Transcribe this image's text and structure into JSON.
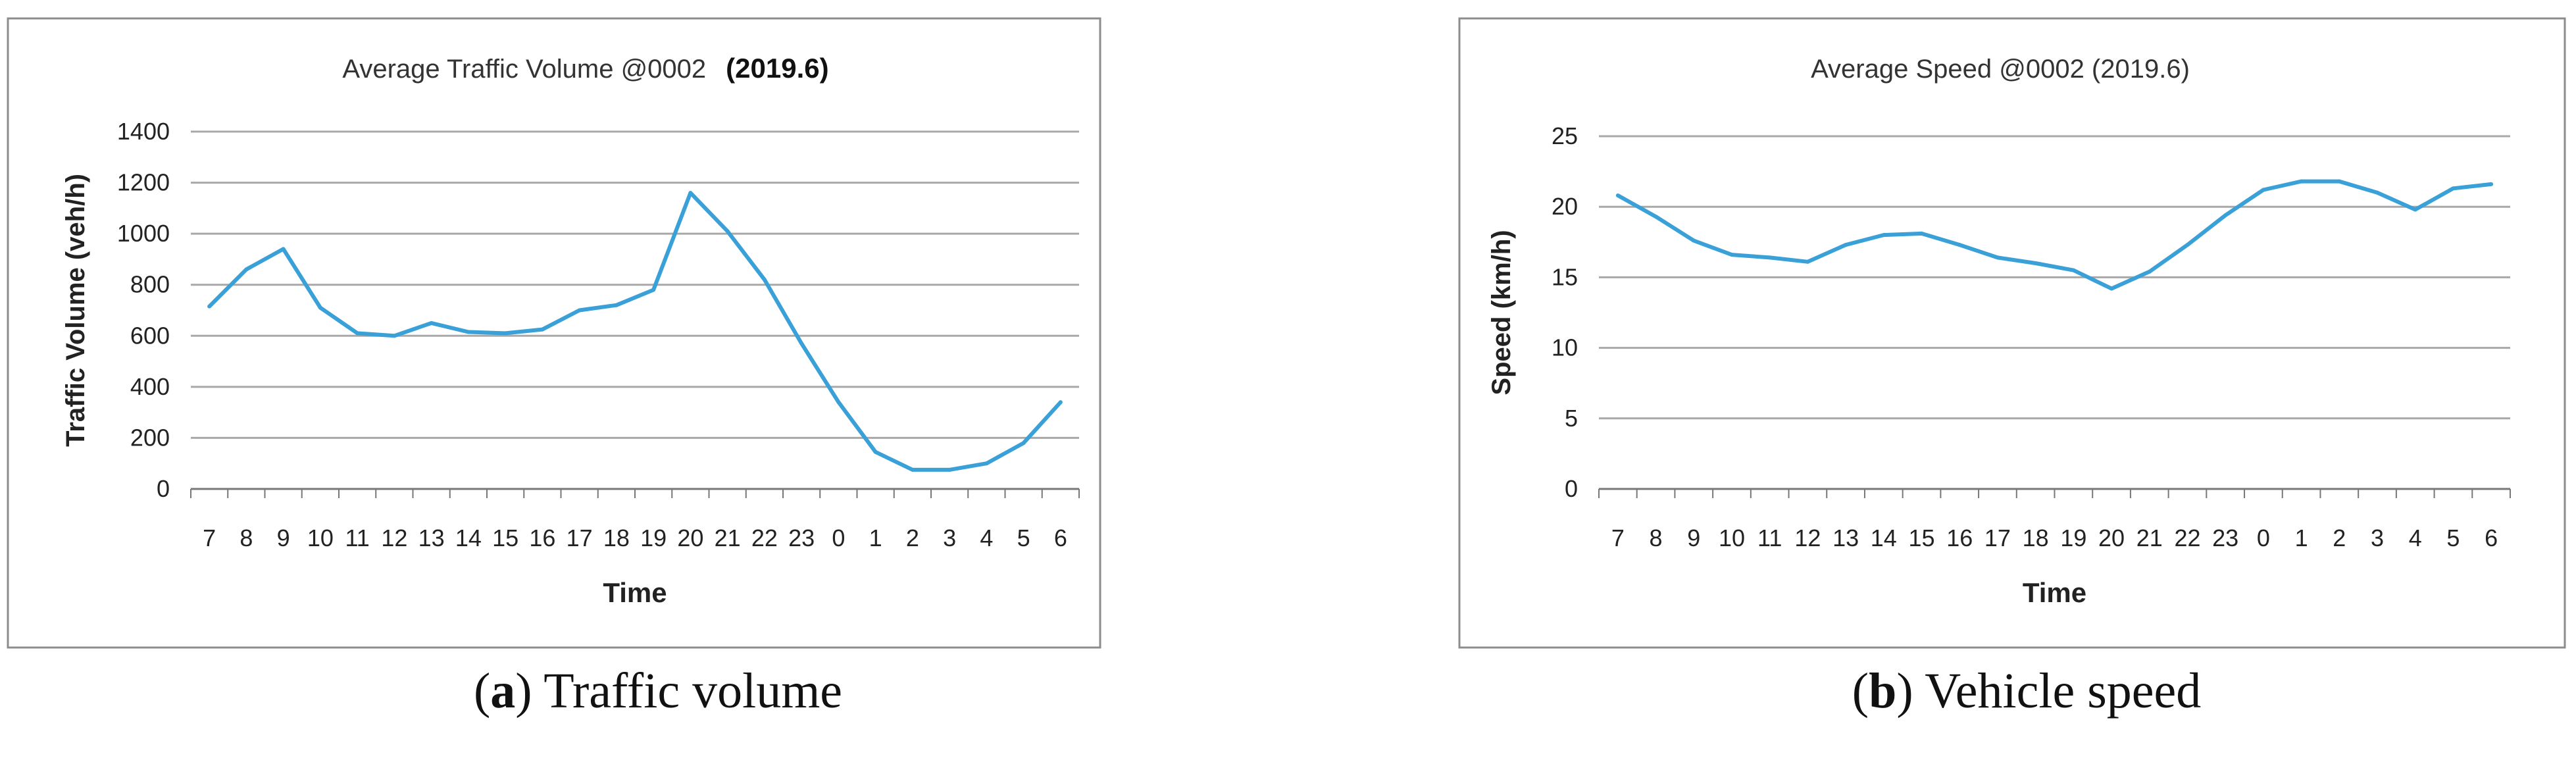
{
  "chart_data": [
    {
      "type": "line",
      "title_main": "Average Traffic Volume @0002",
      "title_date": "(2019.6)",
      "xlabel": "Time",
      "ylabel": "Traffic Volume (veh/h)",
      "categories": [
        "7",
        "8",
        "9",
        "10",
        "11",
        "12",
        "13",
        "14",
        "15",
        "16",
        "17",
        "18",
        "19",
        "20",
        "21",
        "22",
        "23",
        "0",
        "1",
        "2",
        "3",
        "4",
        "5",
        "6"
      ],
      "ylim": [
        0,
        1400
      ],
      "yticks": [
        "0",
        "200",
        "400",
        "600",
        "800",
        "1000",
        "1200",
        "1400"
      ],
      "grid": true,
      "line_color": "#3aa0d8",
      "series": [
        {
          "values": [
            715,
            860,
            940,
            710,
            610,
            600,
            650,
            615,
            610,
            625,
            700,
            720,
            780,
            1160,
            1010,
            820,
            570,
            340,
            145,
            75,
            75,
            100,
            180,
            340
          ]
        }
      ]
    },
    {
      "type": "line",
      "title_main": "Average Speed @0002 (2019.6)",
      "title_date": "",
      "xlabel": "Time",
      "ylabel": "Speed (km/h)",
      "categories": [
        "7",
        "8",
        "9",
        "10",
        "11",
        "12",
        "13",
        "14",
        "15",
        "16",
        "17",
        "18",
        "19",
        "20",
        "21",
        "22",
        "23",
        "0",
        "1",
        "2",
        "3",
        "4",
        "5",
        "6"
      ],
      "ylim": [
        0,
        25
      ],
      "yticks": [
        "0",
        "5",
        "10",
        "15",
        "20",
        "25"
      ],
      "grid": true,
      "line_color": "#3aa0d8",
      "series": [
        {
          "values": [
            20.8,
            19.3,
            17.6,
            16.6,
            16.4,
            16.1,
            17.3,
            18.0,
            18.1,
            17.3,
            16.4,
            16.0,
            15.5,
            14.2,
            15.4,
            17.3,
            19.4,
            21.2,
            21.8,
            21.8,
            21.0,
            19.8,
            21.3,
            21.6
          ]
        }
      ]
    }
  ],
  "captions": [
    {
      "letter": "a",
      "text": " Traffic volume"
    },
    {
      "letter": "b",
      "text": " Vehicle speed"
    }
  ]
}
